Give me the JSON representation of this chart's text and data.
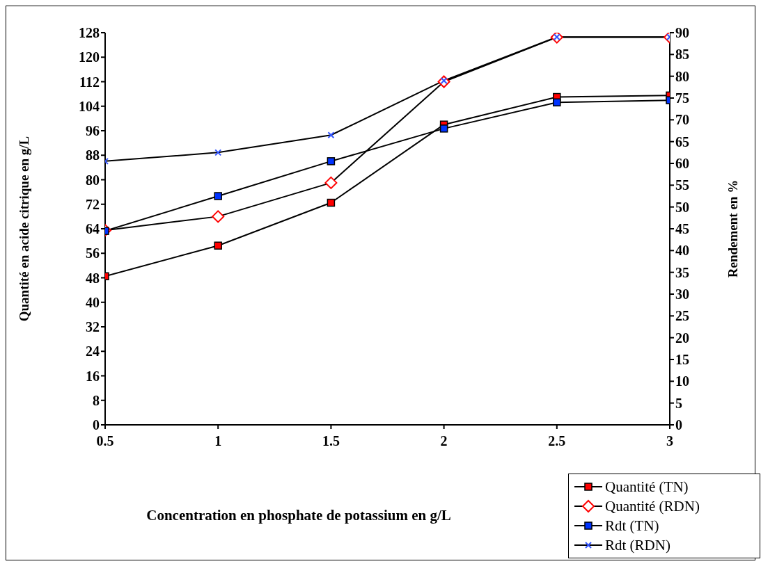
{
  "chart_data": {
    "type": "line",
    "xlabel": "Concentration en phosphate de potassium en g/L",
    "ylabel": "Quantité en acide citrique en g/L",
    "y2label": "Rendement en %",
    "x": [
      0.5,
      1,
      1.5,
      2,
      2.5,
      3
    ],
    "xlim": [
      0.5,
      3
    ],
    "xticks": [
      0.5,
      1,
      1.5,
      2,
      2.5,
      3
    ],
    "ylim": [
      0,
      128
    ],
    "yticks": [
      0,
      8,
      16,
      24,
      32,
      40,
      48,
      56,
      64,
      72,
      80,
      88,
      96,
      104,
      112,
      120,
      128
    ],
    "y2lim": [
      0,
      90
    ],
    "y2ticks": [
      0,
      5,
      10,
      15,
      20,
      25,
      30,
      35,
      40,
      45,
      50,
      55,
      60,
      65,
      70,
      75,
      80,
      85,
      90
    ],
    "grid": false,
    "legend": "bottom right",
    "series": [
      {
        "name": "Quantité (TN)",
        "color": "#ff0000",
        "marker": "square",
        "values": [
          48.5,
          58.5,
          72.5,
          98,
          107,
          107.5
        ]
      },
      {
        "name": "Quantité (RDN)",
        "color": "#ff0000",
        "marker": "diamond",
        "values": [
          63.5,
          68,
          79,
          112,
          126.5,
          126.5
        ]
      },
      {
        "name": "Rdt (TN)",
        "color": "#0033ff",
        "marker": "square",
        "axis": "y2",
        "values": [
          44.5,
          52.5,
          60.5,
          68,
          74,
          74.5
        ]
      },
      {
        "name": "Rdt (RDN)",
        "color": "#3355ff",
        "marker": "cross",
        "axis": "y2",
        "values": [
          60.5,
          62.5,
          66.5,
          79,
          89,
          89
        ]
      }
    ]
  }
}
